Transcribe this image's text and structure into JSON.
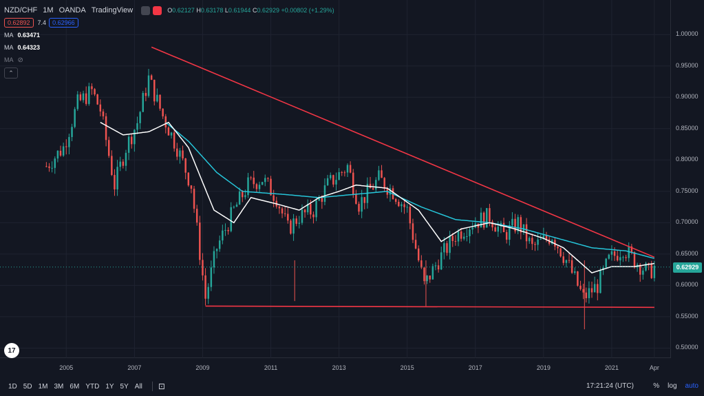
{
  "header": {
    "symbol": "NZD/CHF",
    "interval": "1M",
    "broker": "OANDA",
    "platform": "TradingView",
    "ohlc": {
      "o_label": "O",
      "o": "0.62127",
      "h_label": "H",
      "h": "0.63178",
      "l_label": "L",
      "l": "0.61944",
      "c_label": "C",
      "c": "0.62929",
      "change": "+0.00802 (+1.29%)"
    }
  },
  "bid_ask": {
    "sell": "0.62892",
    "spread": "7.4",
    "buy": "0.62966"
  },
  "indicators": [
    {
      "label": "MA",
      "value": "0.63471",
      "color": "#ffffff"
    },
    {
      "label": "MA",
      "value": "0.64323",
      "color": "#26c6da"
    },
    {
      "label": "MA",
      "value": "",
      "color": "#787b86"
    }
  ],
  "price_scale": {
    "ticks": [
      "1.00000",
      "0.95000",
      "0.90000",
      "0.85000",
      "0.80000",
      "0.75000",
      "0.70000",
      "0.65000",
      "0.60000",
      "0.55000",
      "0.50000"
    ],
    "last_price": "0.62929"
  },
  "time_scale": {
    "ticks": [
      "2005",
      "2007",
      "2009",
      "2011",
      "2013",
      "2015",
      "2017",
      "2019",
      "2021",
      "Apr"
    ]
  },
  "bottom_bar": {
    "ranges": [
      "1D",
      "5D",
      "1M",
      "3M",
      "6M",
      "YTD",
      "1Y",
      "5Y",
      "All"
    ],
    "clock": "17:21:24 (UTC)",
    "percent": "%",
    "log": "log",
    "auto": "auto"
  },
  "colors": {
    "up": "#26a69a",
    "down": "#ef5350",
    "trendline": "#f23645",
    "ma_fast": "#ffffff",
    "ma_slow": "#26c6da",
    "bg": "#131722"
  },
  "chart_data": {
    "type": "candlestick",
    "yscale": "linear",
    "ylim": [
      0.495,
      1.02
    ],
    "x_range": [
      "2004-03",
      "2022-05"
    ],
    "series_anchors": [
      [
        "2004-06",
        0.79
      ],
      [
        "2004-12",
        0.82
      ],
      [
        "2005-05",
        0.89
      ],
      [
        "2005-10",
        0.91
      ],
      [
        "2006-01",
        0.88
      ],
      [
        "2006-06",
        0.76
      ],
      [
        "2006-10",
        0.82
      ],
      [
        "2007-02",
        0.86
      ],
      [
        "2007-06",
        0.93
      ],
      [
        "2007-11",
        0.87
      ],
      [
        "2008-04",
        0.82
      ],
      [
        "2008-09",
        0.76
      ],
      [
        "2009-02",
        0.58
      ],
      [
        "2009-06",
        0.66
      ],
      [
        "2009-12",
        0.72
      ],
      [
        "2010-05",
        0.76
      ],
      [
        "2010-10",
        0.77
      ],
      [
        "2011-03",
        0.74
      ],
      [
        "2011-07",
        0.69
      ],
      [
        "2011-11",
        0.71
      ],
      [
        "2012-04",
        0.72
      ],
      [
        "2012-09",
        0.76
      ],
      [
        "2013-04",
        0.79
      ],
      [
        "2013-08",
        0.73
      ],
      [
        "2014-03",
        0.77
      ],
      [
        "2014-08",
        0.75
      ],
      [
        "2015-01",
        0.72
      ],
      [
        "2015-07",
        0.6
      ],
      [
        "2015-12",
        0.64
      ],
      [
        "2016-06",
        0.68
      ],
      [
        "2016-12",
        0.7
      ],
      [
        "2017-06",
        0.71
      ],
      [
        "2017-11",
        0.68
      ],
      [
        "2018-04",
        0.7
      ],
      [
        "2018-09",
        0.66
      ],
      [
        "2019-04",
        0.68
      ],
      [
        "2019-09",
        0.64
      ],
      [
        "2020-03",
        0.58
      ],
      [
        "2020-08",
        0.6
      ],
      [
        "2020-12",
        0.64
      ],
      [
        "2021-05",
        0.66
      ],
      [
        "2021-09",
        0.64
      ],
      [
        "2022-02",
        0.62
      ],
      [
        "2022-04",
        0.629
      ]
    ],
    "ma_fast_anchors": [
      [
        "2006-01",
        0.86
      ],
      [
        "2006-09",
        0.84
      ],
      [
        "2007-06",
        0.845
      ],
      [
        "2008-01",
        0.86
      ],
      [
        "2008-08",
        0.82
      ],
      [
        "2009-05",
        0.72
      ],
      [
        "2009-12",
        0.7
      ],
      [
        "2010-06",
        0.74
      ],
      [
        "2011-03",
        0.73
      ],
      [
        "2011-11",
        0.72
      ],
      [
        "2012-06",
        0.74
      ],
      [
        "2013-01",
        0.75
      ],
      [
        "2013-07",
        0.76
      ],
      [
        "2014-06",
        0.755
      ],
      [
        "2015-05",
        0.72
      ],
      [
        "2016-01",
        0.67
      ],
      [
        "2016-08",
        0.69
      ],
      [
        "2017-06",
        0.7
      ],
      [
        "2018-03",
        0.69
      ],
      [
        "2019-01",
        0.675
      ],
      [
        "2019-08",
        0.66
      ],
      [
        "2020-06",
        0.62
      ],
      [
        "2021-01",
        0.63
      ],
      [
        "2021-09",
        0.63
      ],
      [
        "2022-04",
        0.635
      ]
    ],
    "ma_slow_anchors": [
      [
        "2007-12",
        0.86
      ],
      [
        "2008-08",
        0.83
      ],
      [
        "2009-06",
        0.78
      ],
      [
        "2010-03",
        0.75
      ],
      [
        "2011-06",
        0.745
      ],
      [
        "2012-06",
        0.74
      ],
      [
        "2013-06",
        0.745
      ],
      [
        "2014-06",
        0.75
      ],
      [
        "2015-06",
        0.725
      ],
      [
        "2016-06",
        0.705
      ],
      [
        "2017-06",
        0.7
      ],
      [
        "2018-06",
        0.69
      ],
      [
        "2019-06",
        0.675
      ],
      [
        "2020-06",
        0.66
      ],
      [
        "2021-06",
        0.655
      ],
      [
        "2022-04",
        0.643
      ]
    ],
    "trendlines": [
      {
        "from": [
          "2007-07",
          0.98
        ],
        "to": [
          "2022-04",
          0.645
        ]
      },
      {
        "from": [
          "2009-02",
          0.567
        ],
        "to": [
          "2022-04",
          0.565
        ]
      }
    ]
  }
}
